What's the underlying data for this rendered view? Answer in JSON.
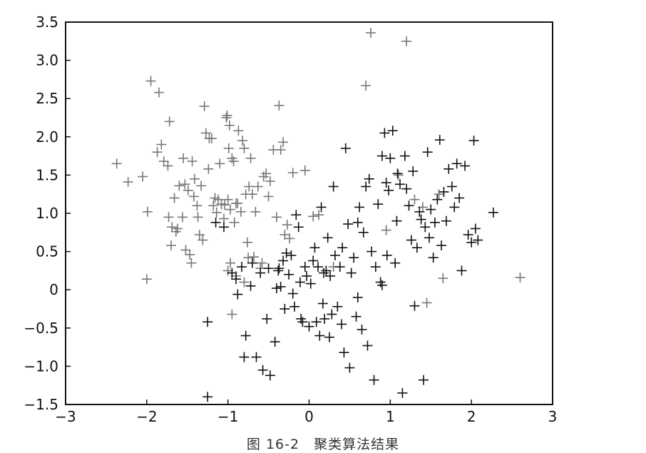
{
  "figure": {
    "caption": "图 16-2　聚类算法结果"
  },
  "chart_data": {
    "type": "scatter",
    "title": "",
    "xlabel": "",
    "ylabel": "",
    "xlim": [
      -3,
      3
    ],
    "ylim": [
      -1.5,
      3.5
    ],
    "xticks": [
      -3,
      -2,
      -1,
      0,
      1,
      2,
      3
    ],
    "yticks": [
      -1.5,
      -1.0,
      -0.5,
      0,
      0.5,
      1.0,
      1.5,
      2.0,
      2.5,
      3.0,
      3.5
    ],
    "xtick_labels": [
      "−3",
      "−2",
      "−1",
      "0",
      "1",
      "2",
      "3"
    ],
    "ytick_labels": [
      "−1.5",
      "−1.0",
      "−0.5",
      "0",
      "0.5",
      "1.0",
      "1.5",
      "2.0",
      "2.5",
      "3.0",
      "3.5"
    ],
    "grid": false,
    "marker": "plus",
    "series": [
      {
        "color": "#777777",
        "points": [
          [
            -2.37,
            1.65
          ],
          [
            -2.23,
            1.41
          ],
          [
            -2.05,
            1.48
          ],
          [
            -1.99,
            1.02
          ],
          [
            -2.0,
            0.14
          ],
          [
            -1.95,
            2.73
          ],
          [
            -1.85,
            2.58
          ],
          [
            -1.87,
            1.8
          ],
          [
            -1.82,
            1.9
          ],
          [
            -1.79,
            1.68
          ],
          [
            -1.74,
            1.62
          ],
          [
            -1.72,
            2.2
          ],
          [
            -1.73,
            0.95
          ],
          [
            -1.7,
            0.58
          ],
          [
            -1.69,
            0.82
          ],
          [
            -1.66,
            1.2
          ],
          [
            -1.64,
            0.76
          ],
          [
            -1.62,
            0.8
          ],
          [
            -1.6,
            1.36
          ],
          [
            -1.56,
            0.95
          ],
          [
            -1.55,
            1.72
          ],
          [
            -1.53,
            1.38
          ],
          [
            -1.52,
            0.52
          ],
          [
            -1.49,
            1.3
          ],
          [
            -1.47,
            0.46
          ],
          [
            -1.45,
            0.35
          ],
          [
            -1.44,
            1.68
          ],
          [
            -1.42,
            1.22
          ],
          [
            -1.41,
            1.45
          ],
          [
            -1.38,
            1.1
          ],
          [
            -1.37,
            0.95
          ],
          [
            -1.35,
            0.72
          ],
          [
            -1.33,
            1.36
          ],
          [
            -1.31,
            0.65
          ],
          [
            -1.29,
            2.4
          ],
          [
            -1.27,
            2.05
          ],
          [
            -1.24,
            1.58
          ],
          [
            -1.23,
            1.98
          ],
          [
            -1.2,
            1.98
          ],
          [
            -1.18,
            1.1
          ],
          [
            -1.16,
            1.2
          ],
          [
            -1.14,
            1.01
          ],
          [
            -1.12,
            1.18
          ],
          [
            -1.1,
            1.65
          ],
          [
            -1.08,
            1.12
          ],
          [
            -1.05,
            0.93
          ],
          [
            -1.04,
            1.11
          ],
          [
            -1.02,
            2.25
          ],
          [
            -1.01,
            2.28
          ],
          [
            -1.0,
            1.18
          ],
          [
            -0.99,
            1.85
          ],
          [
            -0.98,
            2.15
          ],
          [
            -0.97,
            1.05
          ],
          [
            -0.95,
            1.72
          ],
          [
            -0.93,
            1.68
          ],
          [
            -0.92,
            0.88
          ],
          [
            -0.9,
            1.13
          ],
          [
            -0.88,
            1.13
          ],
          [
            -0.87,
            2.08
          ],
          [
            -0.84,
            1.02
          ],
          [
            -0.82,
            1.95
          ],
          [
            -0.8,
            1.85
          ],
          [
            -0.78,
            1.25
          ],
          [
            -0.76,
            0.62
          ],
          [
            -0.74,
            1.35
          ],
          [
            -0.72,
            1.72
          ],
          [
            -0.7,
            1.25
          ],
          [
            -0.68,
            0.43
          ],
          [
            -0.66,
            1.02
          ],
          [
            -0.63,
            1.35
          ],
          [
            -0.6,
            0.28
          ],
          [
            -0.58,
            0.35
          ],
          [
            -0.56,
            1.48
          ],
          [
            -0.53,
            1.52
          ],
          [
            -0.5,
            1.22
          ],
          [
            -0.48,
            1.42
          ],
          [
            -0.44,
            1.83
          ],
          [
            -0.4,
            0.95
          ],
          [
            -0.37,
            2.41
          ],
          [
            -0.35,
            1.83
          ],
          [
            -0.32,
            1.93
          ],
          [
            -0.3,
            0.72
          ],
          [
            -0.27,
            0.85
          ],
          [
            -0.24,
            0.67
          ],
          [
            -0.2,
            1.53
          ],
          [
            -0.05,
            1.56
          ],
          [
            -1.0,
            0.25
          ],
          [
            -0.97,
            0.35
          ],
          [
            -0.95,
            -0.32
          ],
          [
            -0.9,
            0.18
          ],
          [
            -0.8,
            0.1
          ],
          [
            -0.75,
            0.42
          ],
          [
            0.05,
            0.96
          ],
          [
            0.12,
            0.98
          ],
          [
            0.3,
            0.3
          ],
          [
            0.7,
            2.67
          ],
          [
            0.76,
            3.36
          ],
          [
            0.95,
            0.78
          ],
          [
            1.2,
            3.25
          ],
          [
            1.45,
            -0.17
          ],
          [
            1.65,
            0.15
          ],
          [
            2.6,
            0.16
          ],
          [
            1.1,
            1.5
          ],
          [
            1.4,
            1.08
          ],
          [
            1.6,
            1.25
          ],
          [
            1.3,
            1.18
          ]
        ]
      },
      {
        "color": "#111111",
        "points": [
          [
            -1.25,
            -1.4
          ],
          [
            -1.25,
            -0.42
          ],
          [
            -1.15,
            0.88
          ],
          [
            -1.05,
            0.82
          ],
          [
            -0.95,
            0.22
          ],
          [
            -0.9,
            0.14
          ],
          [
            -0.88,
            -0.06
          ],
          [
            -0.83,
            0.3
          ],
          [
            -0.8,
            -0.88
          ],
          [
            -0.78,
            -0.6
          ],
          [
            -0.72,
            0.05
          ],
          [
            -0.7,
            0.35
          ],
          [
            -0.65,
            -0.88
          ],
          [
            -0.6,
            0.22
          ],
          [
            -0.57,
            -1.05
          ],
          [
            -0.52,
            -0.38
          ],
          [
            -0.5,
            0.28
          ],
          [
            -0.48,
            -1.12
          ],
          [
            -0.42,
            -0.68
          ],
          [
            -0.4,
            0.02
          ],
          [
            -0.37,
            0.28
          ],
          [
            -0.35,
            0.04
          ],
          [
            -0.32,
            0.38
          ],
          [
            -0.3,
            -0.25
          ],
          [
            -0.28,
            0.48
          ],
          [
            -0.25,
            0.2
          ],
          [
            -0.22,
            0.45
          ],
          [
            -0.2,
            -0.05
          ],
          [
            -0.18,
            -0.22
          ],
          [
            -0.16,
            0.98
          ],
          [
            -0.13,
            0.82
          ],
          [
            -0.11,
            0.1
          ],
          [
            -0.08,
            -0.42
          ],
          [
            -0.05,
            0.3
          ],
          [
            -0.03,
            0.18
          ],
          [
            0.0,
            -0.48
          ],
          [
            0.02,
            0.08
          ],
          [
            0.05,
            0.38
          ],
          [
            0.07,
            0.55
          ],
          [
            0.09,
            -0.42
          ],
          [
            0.11,
            0.3
          ],
          [
            0.13,
            -0.6
          ],
          [
            0.15,
            1.08
          ],
          [
            0.17,
            -0.18
          ],
          [
            0.19,
            -0.38
          ],
          [
            0.21,
            0.25
          ],
          [
            0.23,
            0.68
          ],
          [
            0.25,
            -0.62
          ],
          [
            0.28,
            -0.32
          ],
          [
            0.3,
            1.35
          ],
          [
            0.32,
            0.45
          ],
          [
            0.35,
            -0.22
          ],
          [
            0.38,
            0.3
          ],
          [
            0.41,
            0.55
          ],
          [
            0.43,
            -0.82
          ],
          [
            0.45,
            1.85
          ],
          [
            0.48,
            0.86
          ],
          [
            0.5,
            -1.02
          ],
          [
            0.52,
            0.22
          ],
          [
            0.55,
            0.42
          ],
          [
            0.58,
            -0.35
          ],
          [
            0.6,
            0.88
          ],
          [
            0.62,
            1.08
          ],
          [
            0.65,
            -0.52
          ],
          [
            0.67,
            0.75
          ],
          [
            0.7,
            1.35
          ],
          [
            0.72,
            -0.73
          ],
          [
            0.74,
            1.45
          ],
          [
            0.77,
            0.5
          ],
          [
            0.8,
            -1.18
          ],
          [
            0.82,
            0.3
          ],
          [
            0.85,
            1.12
          ],
          [
            0.88,
            0.1
          ],
          [
            0.9,
            1.75
          ],
          [
            0.93,
            2.05
          ],
          [
            0.96,
            0.45
          ],
          [
            0.98,
            1.3
          ],
          [
            1.0,
            1.72
          ],
          [
            1.03,
            2.08
          ],
          [
            1.06,
            0.35
          ],
          [
            1.09,
            1.52
          ],
          [
            1.12,
            1.38
          ],
          [
            1.15,
            -1.35
          ],
          [
            1.18,
            1.75
          ],
          [
            1.2,
            1.32
          ],
          [
            1.23,
            1.1
          ],
          [
            1.26,
            0.65
          ],
          [
            1.28,
            1.55
          ],
          [
            1.3,
            -0.21
          ],
          [
            1.33,
            0.55
          ],
          [
            1.36,
            1.02
          ],
          [
            1.38,
            0.92
          ],
          [
            1.41,
            -1.18
          ],
          [
            1.43,
            0.82
          ],
          [
            1.46,
            1.8
          ],
          [
            1.48,
            0.68
          ],
          [
            1.5,
            1.05
          ],
          [
            1.53,
            0.42
          ],
          [
            1.55,
            0.88
          ],
          [
            1.58,
            1.18
          ],
          [
            1.61,
            1.96
          ],
          [
            1.63,
            0.58
          ],
          [
            1.66,
            1.28
          ],
          [
            1.69,
            0.9
          ],
          [
            1.72,
            1.58
          ],
          [
            1.76,
            1.35
          ],
          [
            1.79,
            1.08
          ],
          [
            1.82,
            1.65
          ],
          [
            1.85,
            1.2
          ],
          [
            1.88,
            0.25
          ],
          [
            1.92,
            1.62
          ],
          [
            1.96,
            0.72
          ],
          [
            2.0,
            0.62
          ],
          [
            2.03,
            1.95
          ],
          [
            2.05,
            0.8
          ],
          [
            2.08,
            0.65
          ],
          [
            2.27,
            1.01
          ],
          [
            0.6,
            -0.1
          ],
          [
            0.18,
            0.22
          ],
          [
            -0.1,
            -0.38
          ],
          [
            0.95,
            1.4
          ],
          [
            1.08,
            0.9
          ],
          [
            0.9,
            0.06
          ],
          [
            0.4,
            -0.45
          ],
          [
            -0.38,
            0.25
          ],
          [
            0.26,
            0.18
          ]
        ]
      }
    ]
  }
}
